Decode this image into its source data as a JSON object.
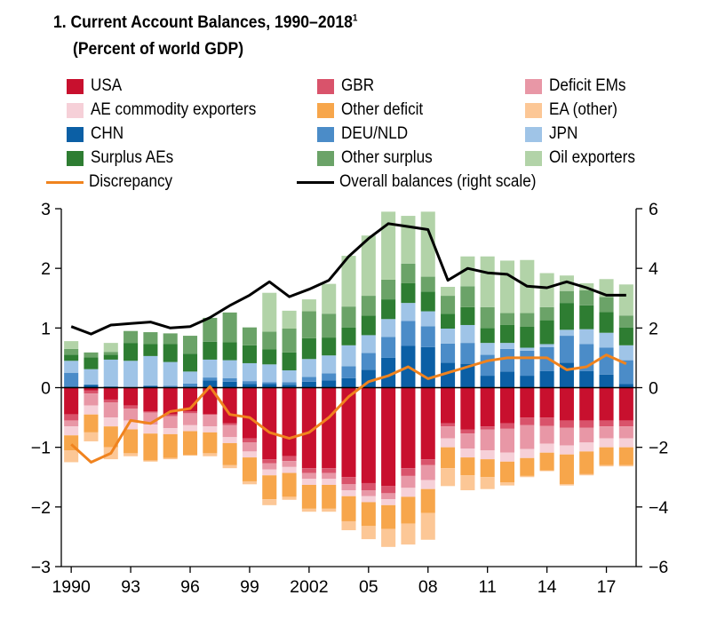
{
  "title": "1. Current Account Balances, 1990–2018",
  "title_footnote": "1",
  "subtitle": "(Percent of world GDP)",
  "legend": [
    {
      "key": "usa",
      "label": "USA",
      "color": "#c8102e"
    },
    {
      "key": "gbr",
      "label": "GBR",
      "color": "#d9536b"
    },
    {
      "key": "deficit_ems",
      "label": "Deficit EMs",
      "color": "#e897a6"
    },
    {
      "key": "ae_commodity",
      "label": "AE commodity exporters",
      "color": "#f6d0d8"
    },
    {
      "key": "other_deficit",
      "label": "Other deficit",
      "color": "#f7a64b"
    },
    {
      "key": "ea_other",
      "label": "EA (other)",
      "color": "#fcc796"
    },
    {
      "key": "chn",
      "label": "CHN",
      "color": "#0b5fa5"
    },
    {
      "key": "deu_nld",
      "label": "DEU/NLD",
      "color": "#4b8cc8"
    },
    {
      "key": "jpn",
      "label": "JPN",
      "color": "#9fc4e7"
    },
    {
      "key": "surplus_aes",
      "label": "Surplus AEs",
      "color": "#2e7d32"
    },
    {
      "key": "other_surplus",
      "label": "Other surplus",
      "color": "#6ba368"
    },
    {
      "key": "oil_exporters",
      "label": "Oil exporters",
      "color": "#b2d3a8"
    },
    {
      "key": "discrepancy",
      "label": "Discrepancy",
      "color": "#f0831e"
    },
    {
      "key": "overall",
      "label": "Overall balances (right scale)",
      "color": "#000000"
    }
  ],
  "chart_data": {
    "type": "bar",
    "subtype": "stacked bar with lines",
    "x_tick_labels": [
      "1990",
      "93",
      "96",
      "99",
      "2002",
      "05",
      "08",
      "11",
      "14",
      "17"
    ],
    "y_left": {
      "min": -3,
      "max": 3,
      "ticks": [
        3,
        2,
        1,
        0,
        -1,
        -2,
        -3
      ],
      "tick_labels": [
        "3",
        "2",
        "1",
        "0",
        "−1",
        "−2",
        "−3"
      ]
    },
    "y_right": {
      "min": -6,
      "max": 6,
      "ticks": [
        6,
        4,
        2,
        0,
        -2,
        -4,
        -6
      ],
      "tick_labels": [
        "6",
        "4",
        "2",
        "0",
        "−2",
        "−4",
        "−6"
      ]
    },
    "years": [
      1990,
      1991,
      1992,
      1993,
      1994,
      1995,
      1996,
      1997,
      1998,
      1999,
      2000,
      2001,
      2002,
      2003,
      2004,
      2005,
      2006,
      2007,
      2008,
      2009,
      2010,
      2011,
      2012,
      2013,
      2014,
      2015,
      2016,
      2017,
      2018
    ],
    "positive_series": [
      {
        "name": "CHN",
        "key": "chn",
        "values": [
          0.02,
          0.05,
          0.02,
          0.0,
          0.03,
          0.01,
          0.02,
          0.12,
          0.1,
          0.06,
          0.06,
          0.05,
          0.1,
          0.12,
          0.16,
          0.3,
          0.5,
          0.7,
          0.68,
          0.42,
          0.4,
          0.2,
          0.27,
          0.2,
          0.28,
          0.42,
          0.28,
          0.22,
          0.06
        ]
      },
      {
        "name": "DEU/NLD",
        "key": "deu_nld",
        "values": [
          0.23,
          0.0,
          0.0,
          0.0,
          0.0,
          0.02,
          0.05,
          0.05,
          0.06,
          0.05,
          0.03,
          0.04,
          0.08,
          0.12,
          0.2,
          0.28,
          0.35,
          0.42,
          0.35,
          0.32,
          0.35,
          0.35,
          0.38,
          0.42,
          0.4,
          0.45,
          0.45,
          0.45,
          0.4
        ]
      },
      {
        "name": "JPN",
        "key": "jpn",
        "values": [
          0.2,
          0.26,
          0.45,
          0.45,
          0.5,
          0.4,
          0.2,
          0.3,
          0.3,
          0.3,
          0.3,
          0.2,
          0.3,
          0.3,
          0.35,
          0.3,
          0.3,
          0.3,
          0.25,
          0.25,
          0.3,
          0.2,
          0.1,
          0.05,
          0.05,
          0.1,
          0.25,
          0.25,
          0.25
        ]
      },
      {
        "name": "Surplus AEs",
        "key": "surplus_aes",
        "values": [
          0.1,
          0.2,
          0.08,
          0.3,
          0.2,
          0.3,
          0.3,
          0.3,
          0.3,
          0.3,
          0.25,
          0.3,
          0.35,
          0.3,
          0.3,
          0.33,
          0.33,
          0.33,
          0.33,
          0.25,
          0.3,
          0.25,
          0.3,
          0.35,
          0.4,
          0.45,
          0.4,
          0.35,
          0.3
        ]
      },
      {
        "name": "Other surplus",
        "key": "other_surplus",
        "values": [
          0.1,
          0.08,
          0.05,
          0.2,
          0.2,
          0.18,
          0.3,
          0.4,
          0.5,
          0.3,
          0.3,
          0.4,
          0.45,
          0.4,
          0.35,
          0.33,
          0.33,
          0.33,
          0.25,
          0.3,
          0.35,
          0.35,
          0.2,
          0.23,
          0.22,
          0.2,
          0.25,
          0.25,
          0.2
        ]
      },
      {
        "name": "Oil exporters",
        "key": "oil_exporters",
        "values": [
          0.13,
          0.0,
          0.15,
          0.0,
          0.0,
          0.0,
          0.0,
          0.0,
          0.0,
          0.0,
          0.65,
          0.3,
          0.2,
          0.5,
          0.85,
          1.01,
          1.14,
          0.8,
          1.09,
          0.15,
          0.5,
          0.85,
          0.88,
          0.89,
          0.57,
          0.26,
          0.12,
          0.3,
          0.52
        ]
      }
    ],
    "negative_series": [
      {
        "name": "USA",
        "key": "usa",
        "values": [
          -0.45,
          -0.05,
          -0.2,
          -0.3,
          -0.4,
          -0.45,
          -0.4,
          -0.45,
          -0.6,
          -0.85,
          -1.2,
          -1.15,
          -1.35,
          -1.35,
          -1.5,
          -1.6,
          -1.65,
          -1.35,
          -1.2,
          -0.6,
          -0.7,
          -0.65,
          -0.6,
          -0.5,
          -0.5,
          -0.55,
          -0.55,
          -0.55,
          -0.55
        ]
      },
      {
        "name": "GBR",
        "key": "gbr",
        "values": [
          -0.1,
          -0.05,
          -0.05,
          -0.05,
          -0.02,
          -0.03,
          -0.03,
          0.0,
          -0.03,
          -0.07,
          -0.07,
          -0.08,
          -0.08,
          -0.08,
          -0.12,
          -0.12,
          -0.12,
          -0.13,
          -0.1,
          -0.05,
          -0.07,
          -0.05,
          -0.09,
          -0.13,
          -0.14,
          -0.12,
          -0.12,
          -0.1,
          -0.1
        ]
      },
      {
        "name": "Deficit EMs",
        "key": "deficit_ems",
        "values": [
          -0.1,
          -0.2,
          -0.25,
          -0.2,
          -0.2,
          -0.2,
          -0.2,
          -0.2,
          -0.2,
          -0.15,
          -0.1,
          -0.1,
          -0.1,
          -0.1,
          -0.1,
          -0.1,
          -0.1,
          -0.2,
          -0.25,
          -0.2,
          -0.25,
          -0.35,
          -0.4,
          -0.4,
          -0.3,
          -0.3,
          -0.25,
          -0.2,
          -0.2
        ]
      },
      {
        "name": "AE commodity exporters",
        "key": "ae_commodity",
        "values": [
          -0.15,
          -0.15,
          -0.15,
          -0.15,
          -0.15,
          -0.1,
          -0.1,
          -0.1,
          -0.1,
          -0.1,
          -0.1,
          -0.1,
          -0.1,
          -0.1,
          -0.1,
          -0.1,
          -0.1,
          -0.15,
          -0.15,
          -0.15,
          -0.15,
          -0.15,
          -0.15,
          -0.15,
          -0.15,
          -0.15,
          -0.15,
          -0.15,
          -0.15
        ]
      },
      {
        "name": "Other deficit",
        "key": "other_deficit",
        "values": [
          -0.25,
          -0.3,
          -0.35,
          -0.4,
          -0.45,
          -0.4,
          -0.4,
          -0.35,
          -0.37,
          -0.4,
          -0.4,
          -0.4,
          -0.4,
          -0.4,
          -0.42,
          -0.4,
          -0.4,
          -0.45,
          -0.4,
          -0.35,
          -0.3,
          -0.3,
          -0.35,
          -0.3,
          -0.3,
          -0.5,
          -0.38,
          -0.3,
          -0.3
        ]
      },
      {
        "name": "EA (other)",
        "key": "ea_other",
        "values": [
          -0.2,
          -0.15,
          -0.2,
          -0.05,
          -0.02,
          -0.02,
          -0.01,
          -0.05,
          -0.05,
          -0.05,
          -0.1,
          -0.05,
          -0.05,
          -0.05,
          -0.15,
          -0.22,
          -0.3,
          -0.35,
          -0.45,
          -0.3,
          -0.25,
          -0.2,
          -0.05,
          -0.02,
          -0.01,
          -0.02,
          -0.02,
          -0.02,
          -0.02
        ]
      }
    ],
    "discrepancy": [
      -0.95,
      -1.25,
      -1.1,
      -0.55,
      -0.6,
      -0.4,
      -0.35,
      0.02,
      -0.45,
      -0.5,
      -0.75,
      -0.85,
      -0.75,
      -0.5,
      -0.15,
      0.1,
      0.2,
      0.35,
      0.15,
      0.25,
      0.35,
      0.45,
      0.5,
      0.5,
      0.5,
      0.3,
      0.35,
      0.55,
      0.4
    ],
    "overall_balances": [
      2.05,
      1.8,
      2.1,
      2.15,
      2.2,
      2.0,
      2.05,
      2.35,
      2.75,
      3.1,
      3.55,
      3.05,
      3.3,
      3.6,
      4.4,
      5.0,
      5.5,
      5.4,
      5.3,
      3.6,
      4.0,
      3.85,
      3.8,
      3.4,
      3.35,
      3.55,
      3.35,
      3.1,
      3.1
    ]
  }
}
